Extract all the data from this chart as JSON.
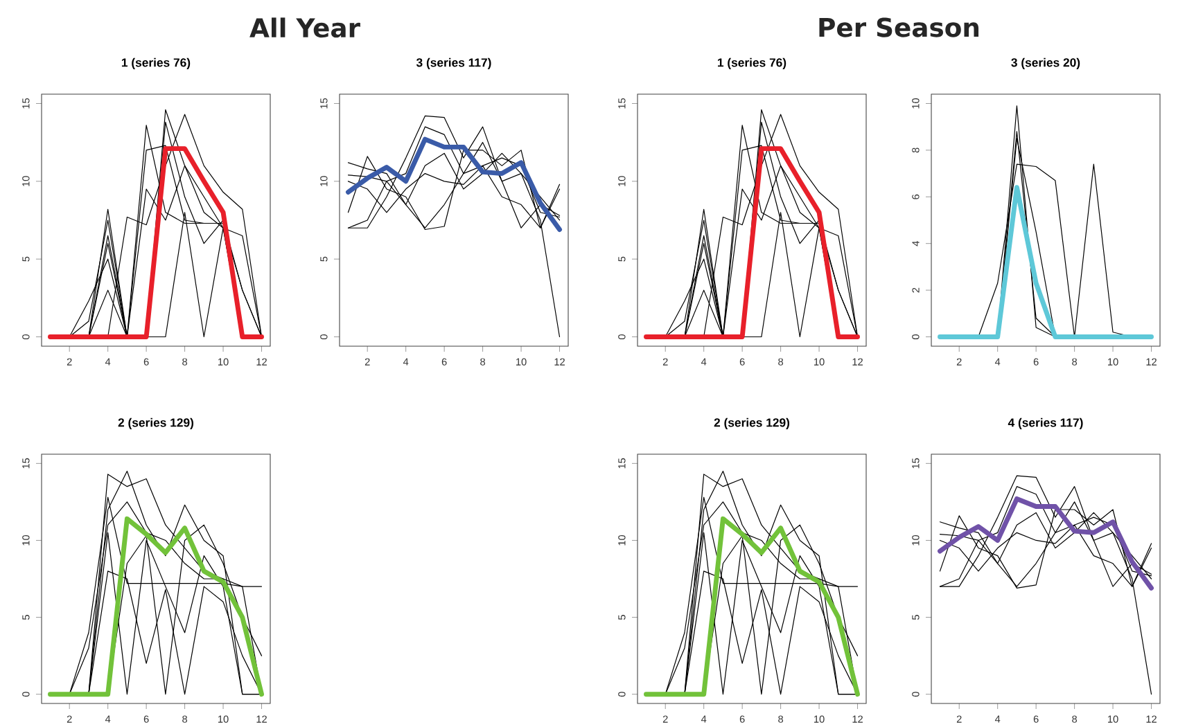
{
  "chart_data": [
    {
      "type": "line",
      "title": "1 (series 76)",
      "annotations": [
        "All Year"
      ],
      "x": [
        1,
        2,
        3,
        4,
        5,
        6,
        7,
        8,
        9,
        10,
        11,
        12
      ],
      "xlim": [
        0.55,
        12.45
      ],
      "xticks": [
        2,
        4,
        6,
        8,
        10,
        12
      ],
      "ylim": [
        -0.6,
        15.6
      ],
      "yticks": [
        0,
        5,
        10,
        15
      ],
      "marker": "none",
      "line_style": "solid",
      "series": [
        {
          "color": "#000000",
          "values": [
            0,
            0,
            1,
            7.5,
            0,
            0,
            13.8,
            9,
            6,
            7.5,
            3,
            0
          ]
        },
        {
          "color": "#000000",
          "values": [
            0,
            0,
            0,
            6,
            0,
            0,
            14.6,
            11,
            8,
            7,
            0,
            0
          ]
        },
        {
          "color": "#000000",
          "values": [
            0,
            0,
            0,
            0,
            7.7,
            7.2,
            11,
            14.3,
            11,
            9.3,
            8.2,
            0
          ]
        },
        {
          "color": "#000000",
          "values": [
            0,
            0,
            0,
            8.2,
            0,
            13.6,
            8,
            7.3,
            7.3,
            7.3,
            0,
            0
          ]
        },
        {
          "color": "#000000",
          "values": [
            0,
            0,
            2.3,
            5,
            0,
            9.5,
            7.5,
            11,
            9,
            7,
            6.5,
            0
          ]
        },
        {
          "color": "#000000",
          "values": [
            0,
            0,
            0,
            3,
            0,
            0,
            0,
            8,
            0,
            7,
            0,
            0
          ]
        },
        {
          "color": "#000000",
          "values": [
            0,
            0,
            0,
            6.5,
            0,
            12,
            12.3,
            7.5,
            7.3,
            7.3,
            3,
            0
          ]
        },
        {
          "color": "#e8202a",
          "values": [
            0,
            0,
            0,
            0,
            0,
            0,
            12.1,
            12.1,
            10,
            8,
            0,
            0
          ]
        }
      ]
    },
    {
      "type": "line",
      "title": "3 (series 117)",
      "x": [
        1,
        2,
        3,
        4,
        5,
        6,
        7,
        8,
        9,
        10,
        11,
        12
      ],
      "xlim": [
        0.55,
        12.45
      ],
      "xticks": [
        2,
        4,
        6,
        8,
        10,
        12
      ],
      "ylim": [
        -0.6,
        15.6
      ],
      "yticks": [
        0,
        5,
        10,
        15
      ],
      "marker": "none",
      "line_style": "solid",
      "series": [
        {
          "color": "#000000",
          "values": [
            11.2,
            10.8,
            10.5,
            8.5,
            7,
            8.5,
            10.5,
            12.5,
            10,
            10.5,
            7.5,
            0
          ]
        },
        {
          "color": "#000000",
          "values": [
            7,
            7,
            9,
            11.5,
            14.2,
            14.1,
            11.5,
            13.5,
            10,
            7,
            8.5,
            7.8
          ]
        },
        {
          "color": "#000000",
          "values": [
            8,
            11.6,
            9.5,
            9,
            6.9,
            7.1,
            12,
            12,
            11,
            12,
            7,
            9.8
          ]
        },
        {
          "color": "#000000",
          "values": [
            10.4,
            10.3,
            10,
            10.5,
            13.5,
            13,
            10.5,
            11,
            11.5,
            11,
            8,
            7.7
          ]
        },
        {
          "color": "#000000",
          "values": [
            7,
            7.5,
            10,
            8.5,
            11,
            11.8,
            9.5,
            10.5,
            11.8,
            10.5,
            9,
            7.5
          ]
        },
        {
          "color": "#000000",
          "values": [
            10,
            9.5,
            8,
            9.5,
            10.5,
            10,
            9.8,
            11,
            9,
            8.5,
            7,
            9.5
          ]
        },
        {
          "color": "#3a5ba8",
          "values": [
            9.3,
            10.2,
            10.9,
            10,
            12.7,
            12.2,
            12.2,
            10.6,
            10.5,
            11.2,
            8.6,
            6.9
          ]
        }
      ]
    },
    {
      "type": "line",
      "title": "1 (series 76)",
      "annotations": [
        "Per Season"
      ],
      "x": [
        1,
        2,
        3,
        4,
        5,
        6,
        7,
        8,
        9,
        10,
        11,
        12
      ],
      "xlim": [
        0.55,
        12.45
      ],
      "xticks": [
        2,
        4,
        6,
        8,
        10,
        12
      ],
      "ylim": [
        -0.6,
        15.6
      ],
      "yticks": [
        0,
        5,
        10,
        15
      ],
      "marker": "none",
      "line_style": "solid",
      "series": [
        {
          "color": "#000000",
          "values": [
            0,
            0,
            1,
            7.5,
            0,
            0,
            13.8,
            9,
            6,
            7.5,
            3,
            0
          ]
        },
        {
          "color": "#000000",
          "values": [
            0,
            0,
            0,
            6,
            0,
            0,
            14.6,
            11,
            8,
            7,
            0,
            0
          ]
        },
        {
          "color": "#000000",
          "values": [
            0,
            0,
            0,
            0,
            7.7,
            7.2,
            11,
            14.3,
            11,
            9.3,
            8.2,
            0
          ]
        },
        {
          "color": "#000000",
          "values": [
            0,
            0,
            0,
            8.2,
            0,
            13.6,
            8,
            7.3,
            7.3,
            7.3,
            0,
            0
          ]
        },
        {
          "color": "#000000",
          "values": [
            0,
            0,
            2.3,
            5,
            0,
            9.5,
            7.5,
            11,
            9,
            7,
            6.5,
            0
          ]
        },
        {
          "color": "#000000",
          "values": [
            0,
            0,
            0,
            3,
            0,
            0,
            0,
            8,
            0,
            7,
            0,
            0
          ]
        },
        {
          "color": "#000000",
          "values": [
            0,
            0,
            0,
            6.5,
            0,
            12,
            12.3,
            7.5,
            7.3,
            7.3,
            3,
            0
          ]
        },
        {
          "color": "#e8202a",
          "values": [
            0,
            0,
            0,
            0,
            0,
            0,
            12.1,
            12.1,
            10,
            8,
            0,
            0
          ]
        }
      ]
    },
    {
      "type": "line",
      "title": "3 (series 20)",
      "x": [
        1,
        2,
        3,
        4,
        5,
        6,
        7,
        8,
        9,
        10,
        11,
        12
      ],
      "xlim": [
        0.55,
        12.45
      ],
      "xticks": [
        2,
        4,
        6,
        8,
        10,
        12
      ],
      "ylim": [
        -0.4,
        10.4
      ],
      "yticks": [
        0,
        2,
        4,
        6,
        8,
        10
      ],
      "marker": "none",
      "line_style": "solid",
      "series": [
        {
          "color": "#000000",
          "values": [
            null,
            null,
            0,
            2.3,
            7.4,
            7.3,
            6.7,
            0,
            7.4,
            0.2,
            0,
            null
          ]
        },
        {
          "color": "#000000",
          "values": [
            null,
            null,
            null,
            0,
            9.9,
            0.4,
            0,
            null,
            null,
            null,
            null,
            null
          ]
        },
        {
          "color": "#000000",
          "values": [
            null,
            null,
            null,
            0,
            8.8,
            0.8,
            0,
            null,
            null,
            null,
            null,
            null
          ]
        },
        {
          "color": "#000000",
          "values": [
            null,
            null,
            null,
            0,
            8.5,
            4.5,
            0,
            null,
            null,
            null,
            null,
            null
          ]
        },
        {
          "color": "#5ec8d8",
          "values": [
            0,
            0,
            0,
            0,
            6.4,
            2.3,
            0,
            0,
            0,
            0,
            0,
            0
          ]
        }
      ]
    },
    {
      "type": "line",
      "title": "2 (series 129)",
      "x": [
        1,
        2,
        3,
        4,
        5,
        6,
        7,
        8,
        9,
        10,
        11,
        12
      ],
      "xlim": [
        0.55,
        12.45
      ],
      "xticks": [
        2,
        4,
        6,
        8,
        10,
        12
      ],
      "ylim": [
        -0.6,
        15.6
      ],
      "yticks": [
        0,
        5,
        10,
        15
      ],
      "marker": "none",
      "line_style": "solid",
      "series": [
        {
          "color": "#000000",
          "values": [
            0,
            0,
            0,
            14.3,
            13.5,
            14,
            11,
            9.5,
            8,
            7.5,
            7,
            7
          ]
        },
        {
          "color": "#000000",
          "values": [
            0,
            0,
            0,
            12,
            14.5,
            11,
            9,
            12.3,
            10,
            9,
            0,
            0
          ]
        },
        {
          "color": "#000000",
          "values": [
            0,
            0,
            4,
            12.8,
            7.2,
            7.2,
            7.2,
            7.2,
            7.2,
            7.2,
            7,
            0
          ]
        },
        {
          "color": "#000000",
          "values": [
            0,
            0,
            0,
            0,
            8.5,
            10.3,
            0,
            10,
            11,
            8.5,
            5,
            0
          ]
        },
        {
          "color": "#000000",
          "values": [
            0,
            0,
            0,
            10.5,
            0,
            10,
            7,
            4,
            9,
            7,
            0,
            0
          ]
        },
        {
          "color": "#000000",
          "values": [
            0,
            0,
            0,
            8,
            7.5,
            2,
            6.8,
            0,
            7,
            6,
            2.5,
            0
          ]
        },
        {
          "color": "#000000",
          "values": [
            0,
            0,
            3,
            11,
            12.5,
            10.5,
            10,
            8.5,
            7.5,
            7.5,
            5,
            2.5
          ]
        },
        {
          "color": "#72c23a",
          "values": [
            0,
            0,
            0,
            0,
            11.4,
            10.4,
            9.2,
            10.8,
            8,
            7.3,
            5,
            0
          ]
        }
      ]
    },
    {
      "type": "line",
      "title": "2 (series 129)",
      "x": [
        1,
        2,
        3,
        4,
        5,
        6,
        7,
        8,
        9,
        10,
        11,
        12
      ],
      "xlim": [
        0.55,
        12.45
      ],
      "xticks": [
        2,
        4,
        6,
        8,
        10,
        12
      ],
      "ylim": [
        -0.6,
        15.6
      ],
      "yticks": [
        0,
        5,
        10,
        15
      ],
      "marker": "none",
      "line_style": "solid",
      "series": [
        {
          "color": "#000000",
          "values": [
            0,
            0,
            0,
            14.3,
            13.5,
            14,
            11,
            9.5,
            8,
            7.5,
            7,
            7
          ]
        },
        {
          "color": "#000000",
          "values": [
            0,
            0,
            0,
            12,
            14.5,
            11,
            9,
            12.3,
            10,
            9,
            0,
            0
          ]
        },
        {
          "color": "#000000",
          "values": [
            0,
            0,
            4,
            12.8,
            7.2,
            7.2,
            7.2,
            7.2,
            7.2,
            7.2,
            7,
            0
          ]
        },
        {
          "color": "#000000",
          "values": [
            0,
            0,
            0,
            0,
            8.5,
            10.3,
            0,
            10,
            11,
            8.5,
            5,
            0
          ]
        },
        {
          "color": "#000000",
          "values": [
            0,
            0,
            0,
            10.5,
            0,
            10,
            7,
            4,
            9,
            7,
            0,
            0
          ]
        },
        {
          "color": "#000000",
          "values": [
            0,
            0,
            0,
            8,
            7.5,
            2,
            6.8,
            0,
            7,
            6,
            2.5,
            0
          ]
        },
        {
          "color": "#000000",
          "values": [
            0,
            0,
            3,
            11,
            12.5,
            10.5,
            10,
            8.5,
            7.5,
            7.5,
            5,
            2.5
          ]
        },
        {
          "color": "#72c23a",
          "values": [
            0,
            0,
            0,
            0,
            11.4,
            10.4,
            9.2,
            10.8,
            8,
            7.3,
            5,
            0
          ]
        }
      ]
    },
    {
      "type": "line",
      "title": "4 (series 117)",
      "x": [
        1,
        2,
        3,
        4,
        5,
        6,
        7,
        8,
        9,
        10,
        11,
        12
      ],
      "xlim": [
        0.55,
        12.45
      ],
      "xticks": [
        2,
        4,
        6,
        8,
        10,
        12
      ],
      "ylim": [
        -0.6,
        15.6
      ],
      "yticks": [
        0,
        5,
        10,
        15
      ],
      "marker": "none",
      "line_style": "solid",
      "series": [
        {
          "color": "#000000",
          "values": [
            11.2,
            10.8,
            10.5,
            8.5,
            7,
            8.5,
            10.5,
            12.5,
            10,
            10.5,
            7.5,
            0
          ]
        },
        {
          "color": "#000000",
          "values": [
            7,
            7,
            9,
            11.5,
            14.2,
            14.1,
            11.5,
            13.5,
            10,
            7,
            8.5,
            7.8
          ]
        },
        {
          "color": "#000000",
          "values": [
            8,
            11.6,
            9.5,
            9,
            6.9,
            7.1,
            12,
            12,
            11,
            12,
            7,
            9.8
          ]
        },
        {
          "color": "#000000",
          "values": [
            10.4,
            10.3,
            10,
            10.5,
            13.5,
            13,
            10.5,
            11,
            11.5,
            11,
            8,
            7.7
          ]
        },
        {
          "color": "#000000",
          "values": [
            7,
            7.5,
            10,
            8.5,
            11,
            11.8,
            9.5,
            10.5,
            11.8,
            10.5,
            9,
            7.5
          ]
        },
        {
          "color": "#000000",
          "values": [
            10,
            9.5,
            8,
            9.5,
            10.5,
            10,
            9.8,
            11,
            9,
            8.5,
            7,
            9.5
          ]
        },
        {
          "color": "#7052a8",
          "values": [
            9.3,
            10.2,
            10.9,
            10,
            12.7,
            12.2,
            12.2,
            10.6,
            10.5,
            11.2,
            8.6,
            6.9
          ]
        }
      ]
    }
  ]
}
